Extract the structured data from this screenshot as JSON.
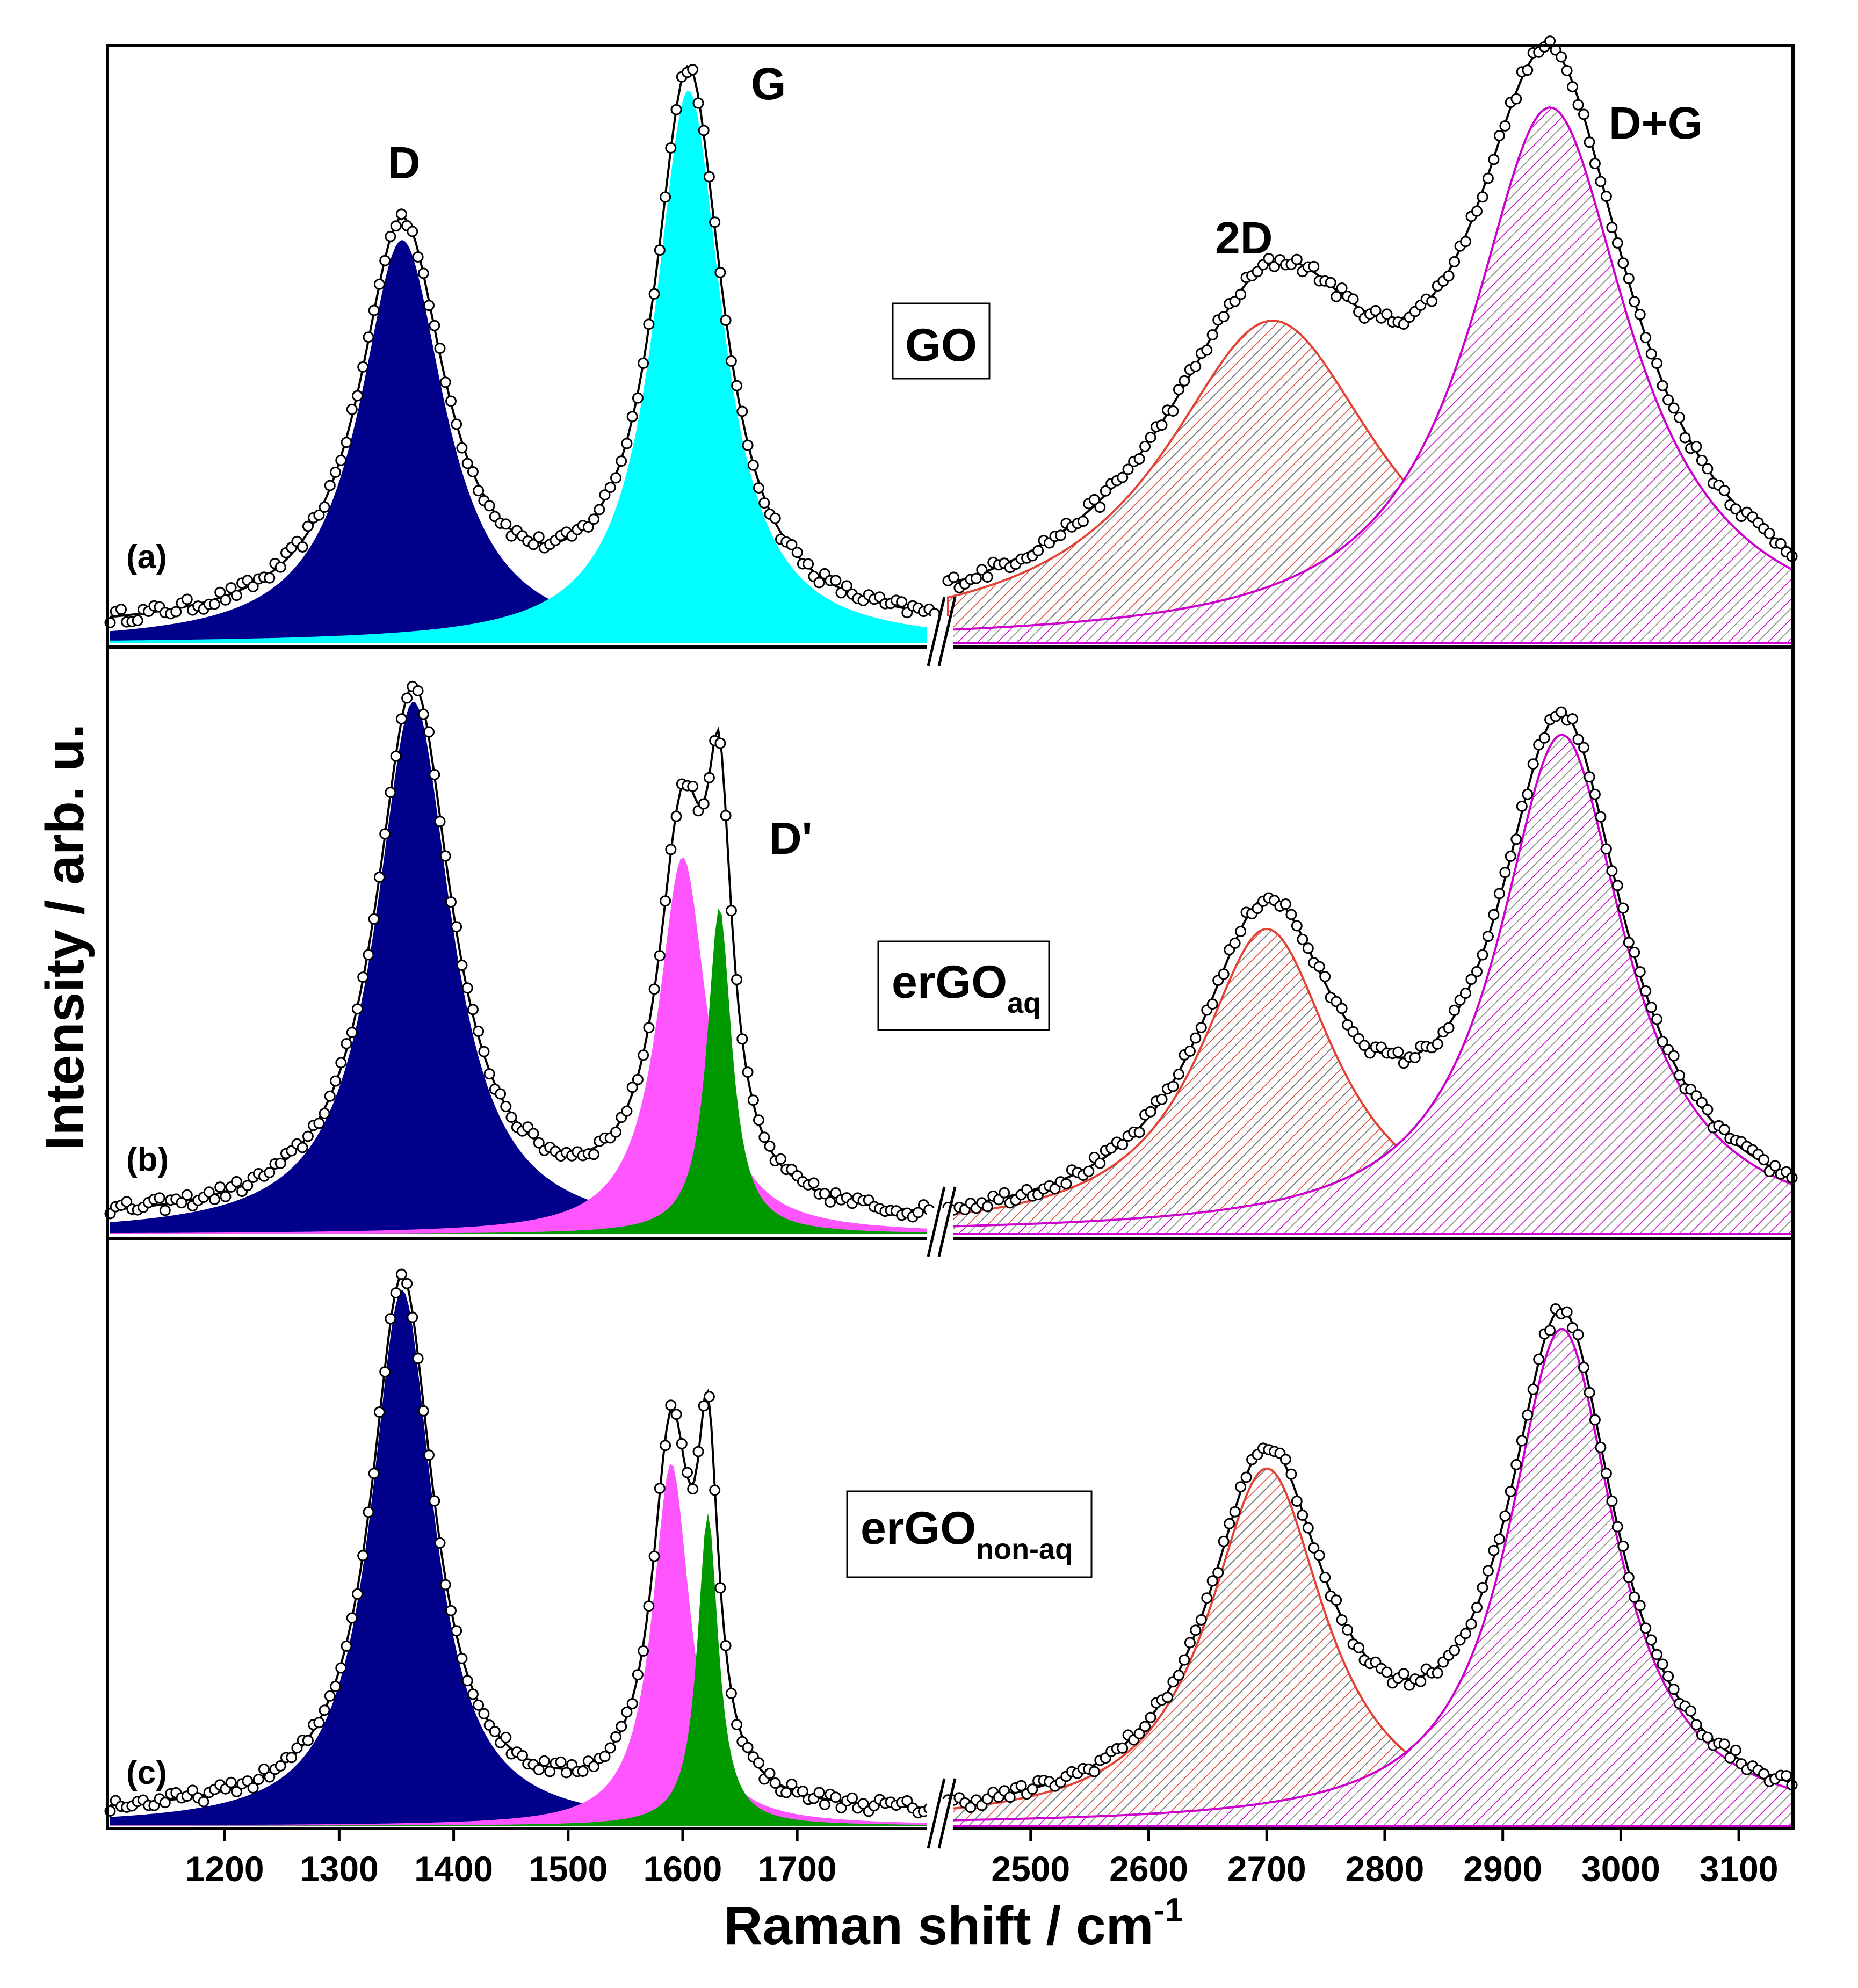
{
  "chart_data": {
    "type": "line",
    "title": "",
    "xlabel": "Raman shift / cm",
    "xlabel_sup": "-1",
    "ylabel": "Intensity / arb. u.",
    "axis_break": true,
    "segment_low": {
      "xlim": [
        1100,
        1820
      ],
      "ticks": [
        1200,
        1300,
        1400,
        1500,
        1600,
        1700
      ]
    },
    "segment_high": {
      "xlim": [
        2430,
        3145
      ],
      "ticks": [
        2500,
        2600,
        2700,
        2800,
        2900,
        3000,
        3100
      ]
    },
    "peak_labels": {
      "D": "D",
      "G": "G",
      "Dprime": "D'",
      "twoD": "2D",
      "DG": "D+G"
    },
    "colors": {
      "D": "#00008b",
      "G": "#00ffff",
      "Dprime_pink": "#ff55ff",
      "Dprime_green": "#009900",
      "twoD": "#e34234",
      "DG": "#cc00cc",
      "fit": "#000000"
    },
    "panels": [
      {
        "tag": "(a)",
        "sample": "GO",
        "sample_sub": "",
        "peaks": [
          {
            "name": "D",
            "center": 1355,
            "hwhm": 45,
            "height": 0.7,
            "style": "solid",
            "color": "#00008b"
          },
          {
            "name": "G",
            "center": 1605,
            "hwhm": 36,
            "height": 0.96,
            "style": "solid",
            "color": "#00ffff"
          },
          {
            "name": "2D",
            "center": 2705,
            "hwhm": 112,
            "height": 0.56,
            "style": "hatch",
            "color": "#e34234"
          },
          {
            "name": "D+G",
            "center": 2940,
            "hwhm": 82,
            "height": 0.93,
            "style": "hatch",
            "color": "#cc00cc"
          }
        ]
      },
      {
        "tag": "(b)",
        "sample": "erGO",
        "sample_sub": "aq",
        "peaks": [
          {
            "name": "D",
            "center": 1365,
            "hwhm": 40,
            "height": 0.96,
            "style": "solid",
            "color": "#00008b"
          },
          {
            "name": "G",
            "center": 1600,
            "hwhm": 26,
            "height": 0.68,
            "style": "solid",
            "color": "#ff55ff"
          },
          {
            "name": "D'",
            "center": 1632,
            "hwhm": 13,
            "height": 0.59,
            "style": "solid",
            "color": "#009900"
          },
          {
            "name": "2D",
            "center": 2700,
            "hwhm": 70,
            "height": 0.55,
            "style": "hatch",
            "color": "#e34234"
          },
          {
            "name": "D+G",
            "center": 2950,
            "hwhm": 65,
            "height": 0.9,
            "style": "hatch",
            "color": "#cc00cc"
          }
        ]
      },
      {
        "tag": "(c)",
        "sample": "erGO",
        "sample_sub": "non-aq",
        "peaks": [
          {
            "name": "D",
            "center": 1355,
            "hwhm": 33,
            "height": 0.96,
            "style": "solid",
            "color": "#00008b"
          },
          {
            "name": "G",
            "center": 1590,
            "hwhm": 20,
            "height": 0.65,
            "style": "solid",
            "color": "#ff55ff"
          },
          {
            "name": "D'",
            "center": 1622,
            "hwhm": 11,
            "height": 0.56,
            "style": "solid",
            "color": "#009900"
          },
          {
            "name": "2D",
            "center": 2700,
            "hwhm": 60,
            "height": 0.64,
            "style": "hatch",
            "color": "#e34234"
          },
          {
            "name": "D+G",
            "center": 2950,
            "hwhm": 55,
            "height": 0.89,
            "style": "hatch",
            "color": "#cc00cc"
          }
        ]
      }
    ]
  }
}
